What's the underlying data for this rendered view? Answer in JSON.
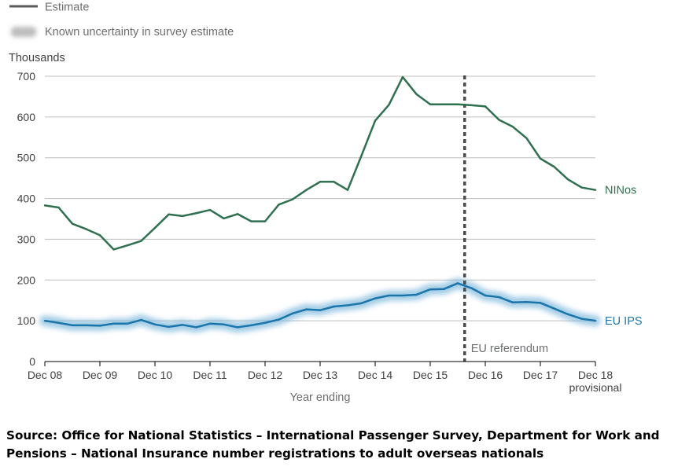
{
  "chart_data": {
    "type": "line",
    "legend": [
      {
        "label": "Estimate",
        "symbol": "line"
      },
      {
        "label": "Known uncertainty in survey estimate",
        "symbol": "blur-band"
      }
    ],
    "ylabel": "Thousands",
    "xlabel": "Year ending",
    "ylim": [
      0,
      700
    ],
    "yticks": [
      0,
      100,
      200,
      300,
      400,
      500,
      600,
      700
    ],
    "xticks": [
      {
        "label": "Dec 08",
        "x": 0
      },
      {
        "label": "Dec 09",
        "x": 4
      },
      {
        "label": "Dec 10",
        "x": 8
      },
      {
        "label": "Dec 11",
        "x": 12
      },
      {
        "label": "Dec 12",
        "x": 16
      },
      {
        "label": "Dec 13",
        "x": 20
      },
      {
        "label": "Dec 14",
        "x": 24
      },
      {
        "label": "Dec 15",
        "x": 28
      },
      {
        "label": "Dec 16",
        "x": 32
      },
      {
        "label": "Dec 17",
        "x": 36
      },
      {
        "label": "Dec 18",
        "sublabel": "provisional",
        "x": 40
      }
    ],
    "xlim": [
      0,
      40
    ],
    "grid": true,
    "annotation": {
      "label": "EU referendum",
      "x": 30.5,
      "style": "dashed"
    },
    "series": [
      {
        "name": "NINos",
        "color": "#2e7150",
        "values": [
          383,
          378,
          338,
          325,
          310,
          275,
          285,
          296,
          328,
          361,
          357,
          364,
          372,
          351,
          362,
          344,
          344,
          385,
          398,
          421,
          441,
          441,
          421,
          505,
          591,
          630,
          698,
          656,
          631,
          631,
          631,
          629,
          626,
          593,
          576,
          548,
          498,
          478,
          447,
          427,
          421
        ]
      },
      {
        "name": "EU IPS",
        "color": "#1a76aa",
        "uncertainty": true,
        "values": [
          100,
          95,
          89,
          89,
          88,
          93,
          93,
          102,
          91,
          85,
          90,
          84,
          93,
          91,
          84,
          89,
          95,
          103,
          118,
          128,
          126,
          135,
          138,
          143,
          155,
          162,
          162,
          164,
          177,
          178,
          192,
          180,
          162,
          158,
          145,
          146,
          144,
          130,
          116,
          105,
          100
        ]
      }
    ]
  },
  "source_text": "Source: Office for National Statistics – International Passenger Survey, Department for Work and Pensions – National Insurance number registrations to adult overseas nationals",
  "colors": {
    "grid": "#bebebe",
    "axis": "#000000",
    "annotation": "#4a4a4a",
    "legend_line": "#5a5a5a",
    "text": "#414042"
  }
}
